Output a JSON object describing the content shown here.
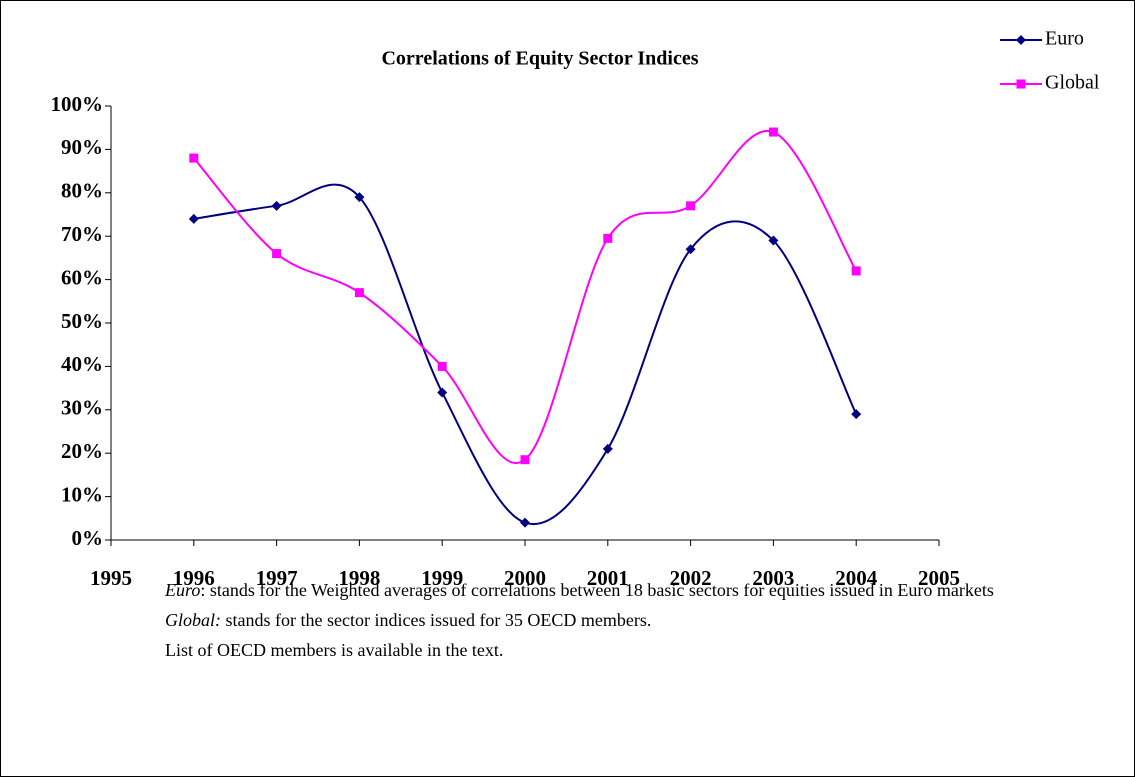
{
  "chart_data": {
    "type": "line",
    "title": "Correlations of Equity Sector Indices",
    "x": [
      1996,
      1997,
      1998,
      1999,
      2000,
      2001,
      2002,
      2003,
      2004
    ],
    "series": [
      {
        "name": "Euro",
        "color": "#000080",
        "marker": "diamond",
        "values": [
          74,
          77,
          79,
          34,
          4,
          21,
          67,
          69,
          29
        ]
      },
      {
        "name": "Global",
        "color": "#ff00ff",
        "marker": "square",
        "values": [
          88,
          66,
          57,
          40,
          18.5,
          69.5,
          77,
          94,
          62
        ]
      }
    ],
    "xlim": [
      1995,
      2005
    ],
    "xticks": [
      1995,
      1996,
      1997,
      1998,
      1999,
      2000,
      2001,
      2002,
      2003,
      2004,
      2005
    ],
    "ylim": [
      0,
      100
    ],
    "yticks": [
      {
        "value": 0,
        "label": "0%"
      },
      {
        "value": 10,
        "label": "10%"
      },
      {
        "value": 20,
        "label": "20%"
      },
      {
        "value": 30,
        "label": "30%"
      },
      {
        "value": 40,
        "label": "40%"
      },
      {
        "value": 50,
        "label": "50%"
      },
      {
        "value": 60,
        "label": "60%"
      },
      {
        "value": 70,
        "label": "70%"
      },
      {
        "value": 80,
        "label": "80%"
      },
      {
        "value": 90,
        "label": "90%"
      },
      {
        "value": 100,
        "label": "100%"
      }
    ],
    "smooth": true,
    "legend": "top-right",
    "notes": [
      {
        "term": "Euro",
        "text": ": stands for the Weighted averages of correlations between 18 basic sectors for equities issued in Euro markets"
      },
      {
        "term": "Global:",
        "text": " stands for the sector indices issued for 35 OECD members."
      },
      {
        "text": "List of OECD members is available in the text."
      }
    ]
  }
}
